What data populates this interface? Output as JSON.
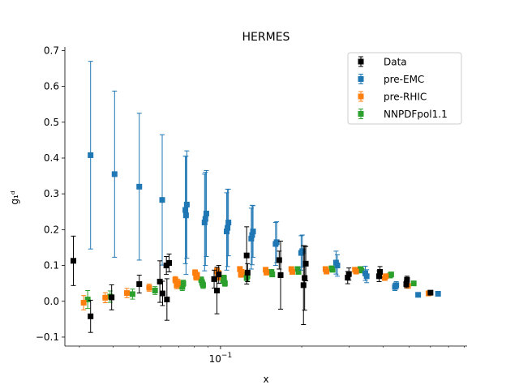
{
  "chart_data": {
    "type": "scatter",
    "title": "HERMES",
    "xlabel": "x",
    "ylabel": "g₁ᵈ",
    "x_scale": "log",
    "xlim": [
      0.0265,
      0.82
    ],
    "ylim": [
      -0.125,
      0.71
    ],
    "x_tick_labels": [
      {
        "value": 0.1,
        "base": "10",
        "exp": "−1"
      }
    ],
    "yticks": [
      -0.1,
      0.0,
      0.1,
      0.2,
      0.3,
      0.4,
      0.5,
      0.6,
      0.7
    ],
    "ytick_labels": [
      "−0.1",
      "0.0",
      "0.1",
      "0.2",
      "0.3",
      "0.4",
      "0.5",
      "0.6",
      "0.7"
    ],
    "legend_position": "top-right",
    "series": [
      {
        "name": "Data",
        "color": "#000000",
        "points": [
          {
            "x": 0.0285,
            "y": 0.113,
            "err": 0.069
          },
          {
            "x": 0.033,
            "y": -0.042,
            "err": 0.045
          },
          {
            "x": 0.0395,
            "y": 0.011,
            "err": 0.035
          },
          {
            "x": 0.05,
            "y": 0.048,
            "err": 0.025
          },
          {
            "x": 0.0596,
            "y": 0.055,
            "err": 0.058
          },
          {
            "x": 0.061,
            "y": 0.022,
            "err": 0.034
          },
          {
            "x": 0.063,
            "y": 0.1,
            "err": 0.025
          },
          {
            "x": 0.0633,
            "y": 0.005,
            "err": 0.058
          },
          {
            "x": 0.0645,
            "y": 0.107,
            "err": 0.025
          },
          {
            "x": 0.0947,
            "y": 0.062,
            "err": 0.025
          },
          {
            "x": 0.097,
            "y": 0.03,
            "err": 0.065
          },
          {
            "x": 0.0985,
            "y": 0.075,
            "err": 0.025
          },
          {
            "x": 0.125,
            "y": 0.128,
            "err": 0.08
          },
          {
            "x": 0.126,
            "y": 0.08,
            "err": 0.025
          },
          {
            "x": 0.165,
            "y": 0.115,
            "err": 0.025
          },
          {
            "x": 0.167,
            "y": 0.073,
            "err": 0.095
          },
          {
            "x": 0.203,
            "y": 0.045,
            "err": 0.11
          },
          {
            "x": 0.205,
            "y": 0.065,
            "err": 0.09
          },
          {
            "x": 0.207,
            "y": 0.105,
            "err": 0.048
          },
          {
            "x": 0.296,
            "y": 0.066,
            "err": 0.017
          },
          {
            "x": 0.299,
            "y": 0.076,
            "err": 0.017
          },
          {
            "x": 0.387,
            "y": 0.07,
            "err": 0.015
          },
          {
            "x": 0.39,
            "y": 0.082,
            "err": 0.015
          },
          {
            "x": 0.488,
            "y": 0.048,
            "err": 0.01
          },
          {
            "x": 0.491,
            "y": 0.06,
            "err": 0.01
          },
          {
            "x": 0.6,
            "y": 0.024,
            "err": 0.005
          }
        ]
      },
      {
        "name": "pre-EMC",
        "color": "#1f77b4",
        "points": [
          {
            "x": 0.033,
            "y": 0.408,
            "err": 0.262
          },
          {
            "x": 0.0405,
            "y": 0.355,
            "err": 0.232
          },
          {
            "x": 0.05,
            "y": 0.32,
            "err": 0.205
          },
          {
            "x": 0.0608,
            "y": 0.283,
            "err": 0.182
          },
          {
            "x": 0.0741,
            "y": 0.255,
            "err": 0.15
          },
          {
            "x": 0.0745,
            "y": 0.24,
            "err": 0.165
          },
          {
            "x": 0.075,
            "y": 0.27,
            "err": 0.15
          },
          {
            "x": 0.0873,
            "y": 0.22,
            "err": 0.135
          },
          {
            "x": 0.0879,
            "y": 0.23,
            "err": 0.13
          },
          {
            "x": 0.0886,
            "y": 0.245,
            "err": 0.12
          },
          {
            "x": 0.1054,
            "y": 0.195,
            "err": 0.108
          },
          {
            "x": 0.1062,
            "y": 0.205,
            "err": 0.108
          },
          {
            "x": 0.107,
            "y": 0.22,
            "err": 0.093
          },
          {
            "x": 0.13,
            "y": 0.175,
            "err": 0.085
          },
          {
            "x": 0.131,
            "y": 0.185,
            "err": 0.083
          },
          {
            "x": 0.132,
            "y": 0.195,
            "err": 0.072
          },
          {
            "x": 0.16,
            "y": 0.16,
            "err": 0.06
          },
          {
            "x": 0.1615,
            "y": 0.165,
            "err": 0.057
          },
          {
            "x": 0.199,
            "y": 0.135,
            "err": 0.048
          },
          {
            "x": 0.201,
            "y": 0.14,
            "err": 0.045
          },
          {
            "x": 0.268,
            "y": 0.108,
            "err": 0.032
          },
          {
            "x": 0.271,
            "y": 0.1,
            "err": 0.03
          },
          {
            "x": 0.344,
            "y": 0.078,
            "err": 0.02
          },
          {
            "x": 0.348,
            "y": 0.07,
            "err": 0.018
          },
          {
            "x": 0.443,
            "y": 0.04,
            "err": 0.01
          },
          {
            "x": 0.448,
            "y": 0.045,
            "err": 0.01
          },
          {
            "x": 0.54,
            "y": 0.018,
            "err": 0.004
          },
          {
            "x": 0.64,
            "y": 0.021,
            "err": 0.003
          }
        ]
      },
      {
        "name": "pre-RHIC",
        "color": "#ff7f0e",
        "points": [
          {
            "x": 0.0311,
            "y": -0.004,
            "err": 0.02
          },
          {
            "x": 0.0374,
            "y": 0.01,
            "err": 0.014
          },
          {
            "x": 0.045,
            "y": 0.023,
            "err": 0.013
          },
          {
            "x": 0.0544,
            "y": 0.038,
            "err": 0.01
          },
          {
            "x": 0.068,
            "y": 0.06,
            "err": 0.009
          },
          {
            "x": 0.0688,
            "y": 0.045,
            "err": 0.01
          },
          {
            "x": 0.0695,
            "y": 0.052,
            "err": 0.01
          },
          {
            "x": 0.0805,
            "y": 0.08,
            "err": 0.008
          },
          {
            "x": 0.0812,
            "y": 0.068,
            "err": 0.009
          },
          {
            "x": 0.0819,
            "y": 0.072,
            "err": 0.009
          },
          {
            "x": 0.097,
            "y": 0.085,
            "err": 0.008
          },
          {
            "x": 0.0978,
            "y": 0.068,
            "err": 0.009
          },
          {
            "x": 0.0985,
            "y": 0.078,
            "err": 0.008
          },
          {
            "x": 0.118,
            "y": 0.09,
            "err": 0.007
          },
          {
            "x": 0.119,
            "y": 0.075,
            "err": 0.008
          },
          {
            "x": 0.1198,
            "y": 0.082,
            "err": 0.007
          },
          {
            "x": 0.147,
            "y": 0.088,
            "err": 0.006
          },
          {
            "x": 0.148,
            "y": 0.08,
            "err": 0.006
          },
          {
            "x": 0.183,
            "y": 0.09,
            "err": 0.006
          },
          {
            "x": 0.1845,
            "y": 0.082,
            "err": 0.006
          },
          {
            "x": 0.245,
            "y": 0.09,
            "err": 0.005
          },
          {
            "x": 0.247,
            "y": 0.083,
            "err": 0.005
          },
          {
            "x": 0.315,
            "y": 0.088,
            "err": 0.004
          },
          {
            "x": 0.318,
            "y": 0.083,
            "err": 0.004
          },
          {
            "x": 0.406,
            "y": 0.065,
            "err": 0.003
          },
          {
            "x": 0.41,
            "y": 0.07,
            "err": 0.003
          },
          {
            "x": 0.495,
            "y": 0.043,
            "err": 0.002
          },
          {
            "x": 0.59,
            "y": 0.022,
            "err": 0.002
          }
        ]
      },
      {
        "name": "NNPDFpol1.1",
        "color": "#2ca02c",
        "points": [
          {
            "x": 0.0322,
            "y": 0.005,
            "err": 0.025
          },
          {
            "x": 0.039,
            "y": 0.013,
            "err": 0.016
          },
          {
            "x": 0.0472,
            "y": 0.02,
            "err": 0.014
          },
          {
            "x": 0.0572,
            "y": 0.03,
            "err": 0.011
          },
          {
            "x": 0.0715,
            "y": 0.045,
            "err": 0.009
          },
          {
            "x": 0.0722,
            "y": 0.04,
            "err": 0.01
          },
          {
            "x": 0.0728,
            "y": 0.05,
            "err": 0.009
          },
          {
            "x": 0.0848,
            "y": 0.06,
            "err": 0.008
          },
          {
            "x": 0.0855,
            "y": 0.052,
            "err": 0.009
          },
          {
            "x": 0.0862,
            "y": 0.045,
            "err": 0.009
          },
          {
            "x": 0.1022,
            "y": 0.058,
            "err": 0.008
          },
          {
            "x": 0.103,
            "y": 0.065,
            "err": 0.008
          },
          {
            "x": 0.1038,
            "y": 0.05,
            "err": 0.008
          },
          {
            "x": 0.124,
            "y": 0.075,
            "err": 0.007
          },
          {
            "x": 0.125,
            "y": 0.065,
            "err": 0.007
          },
          {
            "x": 0.1258,
            "y": 0.07,
            "err": 0.007
          },
          {
            "x": 0.1545,
            "y": 0.082,
            "err": 0.006
          },
          {
            "x": 0.1555,
            "y": 0.075,
            "err": 0.006
          },
          {
            "x": 0.193,
            "y": 0.09,
            "err": 0.005
          },
          {
            "x": 0.1945,
            "y": 0.082,
            "err": 0.005
          },
          {
            "x": 0.258,
            "y": 0.092,
            "err": 0.004
          },
          {
            "x": 0.26,
            "y": 0.088,
            "err": 0.004
          },
          {
            "x": 0.33,
            "y": 0.09,
            "err": 0.004
          },
          {
            "x": 0.333,
            "y": 0.086,
            "err": 0.004
          },
          {
            "x": 0.425,
            "y": 0.072,
            "err": 0.003
          },
          {
            "x": 0.429,
            "y": 0.075,
            "err": 0.003
          },
          {
            "x": 0.52,
            "y": 0.05,
            "err": 0.002
          }
        ]
      }
    ]
  }
}
